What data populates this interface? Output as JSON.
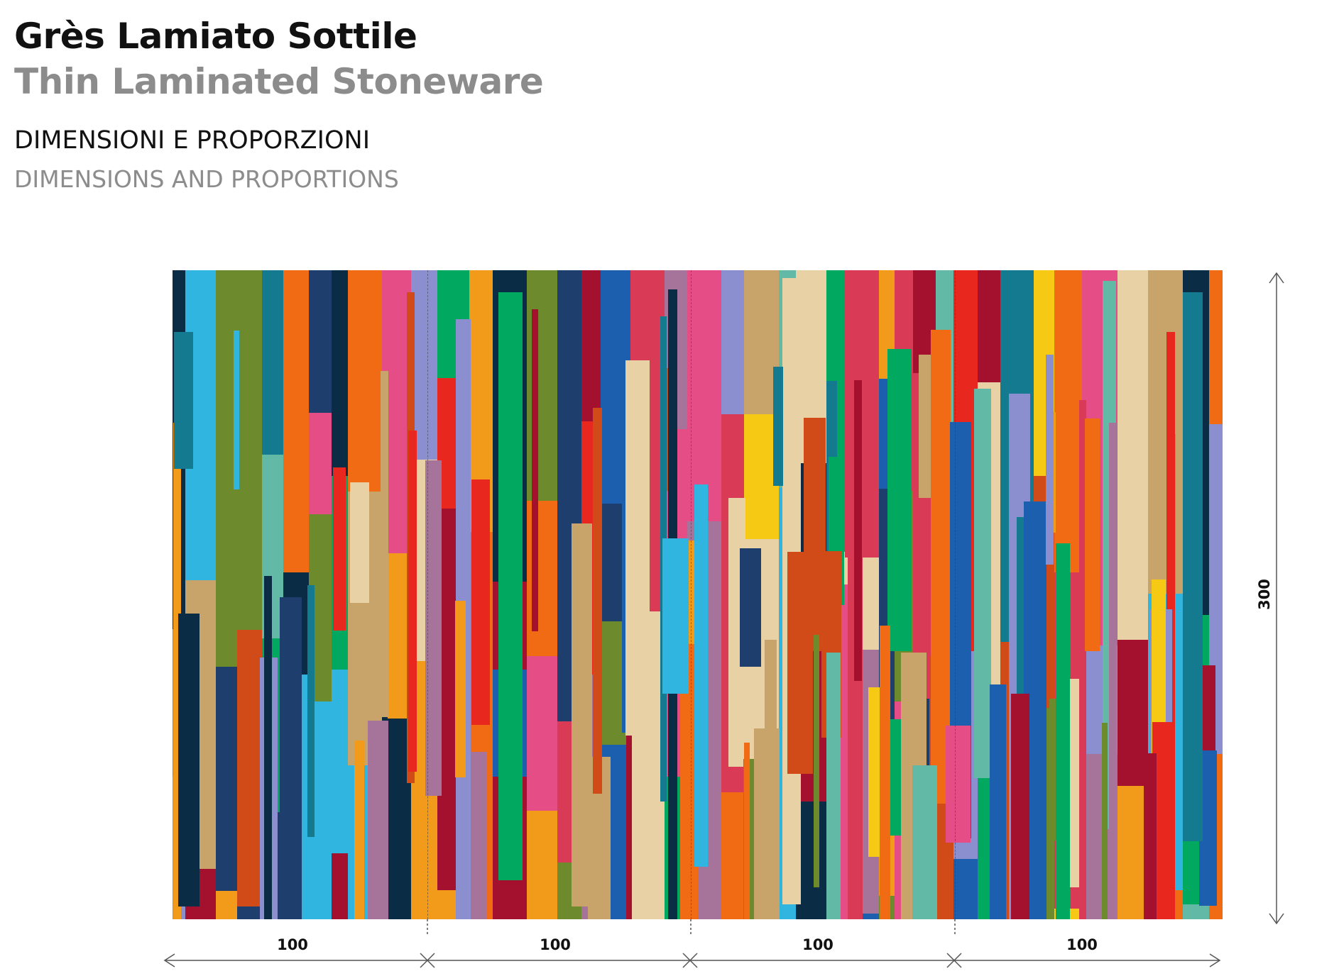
{
  "header": {
    "title_it": "Grès Lamiato Sottile",
    "title_en": "Thin Laminated Stoneware",
    "subtitle_it": "DIMENSIONI E PROPORZIONI",
    "subtitle_en": "DIMENSIONS AND PROPORTIONS"
  },
  "dimensions": {
    "panel_widths": [
      "100",
      "100",
      "100",
      "100"
    ],
    "height": "300"
  },
  "artwork": {
    "palette": [
      "#1b5fae",
      "#e8271f",
      "#f29a1a",
      "#62b9a6",
      "#a4112e",
      "#0a2d45",
      "#8b8fd0",
      "#e44d86",
      "#00a860",
      "#f6c915",
      "#2fb5e0",
      "#d04b17",
      "#c9a46a",
      "#6d8a2c",
      "#a6739a",
      "#e9d1a6",
      "#147a8f",
      "#f16a14",
      "#1e3f6e",
      "#d93a55"
    ]
  }
}
